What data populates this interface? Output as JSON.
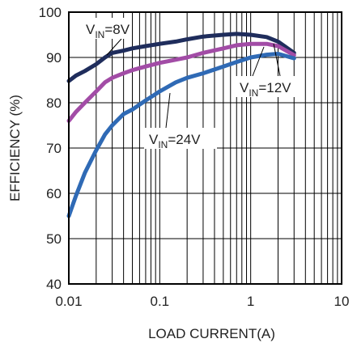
{
  "chart_data": {
    "type": "line",
    "xlabel": "LOAD CURRENT(A)",
    "ylabel": "EFFICIENCY (%)",
    "xscale": "log",
    "xlim": [
      0.01,
      10
    ],
    "ylim": [
      40,
      100
    ],
    "grid": "log-minor-x, major-y",
    "x_ticks": [
      "0.01",
      "0.1",
      "1",
      "10"
    ],
    "y_ticks": [
      "40",
      "50",
      "60",
      "70",
      "80",
      "90",
      "100"
    ],
    "series": [
      {
        "name": "V_IN=8V",
        "color": "#1f2d5c",
        "x": [
          0.01,
          0.012,
          0.015,
          0.02,
          0.025,
          0.03,
          0.04,
          0.05,
          0.07,
          0.1,
          0.15,
          0.2,
          0.3,
          0.5,
          0.7,
          1.0,
          1.5,
          2.0,
          3.0
        ],
        "y": [
          84.8,
          86.0,
          87.0,
          88.5,
          90.0,
          91.0,
          91.5,
          92.0,
          92.5,
          93.0,
          93.5,
          94.0,
          94.6,
          95.0,
          95.2,
          95.0,
          94.5,
          93.5,
          91.0
        ]
      },
      {
        "name": "V_IN=12V",
        "color": "#a24ca6",
        "x": [
          0.01,
          0.012,
          0.015,
          0.02,
          0.025,
          0.03,
          0.04,
          0.05,
          0.07,
          0.1,
          0.15,
          0.2,
          0.3,
          0.5,
          0.7,
          1.0,
          1.5,
          2.0,
          3.0
        ],
        "y": [
          76.0,
          78.0,
          80.0,
          82.5,
          84.5,
          85.5,
          86.5,
          87.2,
          88.0,
          88.8,
          89.5,
          90.0,
          91.0,
          92.0,
          92.7,
          93.0,
          93.0,
          92.5,
          90.5
        ]
      },
      {
        "name": "V_IN=24V",
        "color": "#2f6ab5",
        "x": [
          0.01,
          0.012,
          0.015,
          0.02,
          0.025,
          0.03,
          0.04,
          0.05,
          0.07,
          0.1,
          0.15,
          0.2,
          0.3,
          0.5,
          0.7,
          1.0,
          1.5,
          2.0,
          3.0
        ],
        "y": [
          55.0,
          59.5,
          64.5,
          69.5,
          73.0,
          75.0,
          77.5,
          78.5,
          80.5,
          82.5,
          84.5,
          85.5,
          86.5,
          88.0,
          89.0,
          90.0,
          90.6,
          90.8,
          89.8
        ]
      }
    ],
    "annotations": [
      {
        "prefix": "V",
        "sub": "IN",
        "suffix": "=8V",
        "series": "V_IN=8V"
      },
      {
        "prefix": "V",
        "sub": "IN",
        "suffix": "=12V",
        "series": "V_IN=12V"
      },
      {
        "prefix": "V",
        "sub": "IN",
        "suffix": "=24V",
        "series": "V_IN=24V"
      }
    ]
  }
}
